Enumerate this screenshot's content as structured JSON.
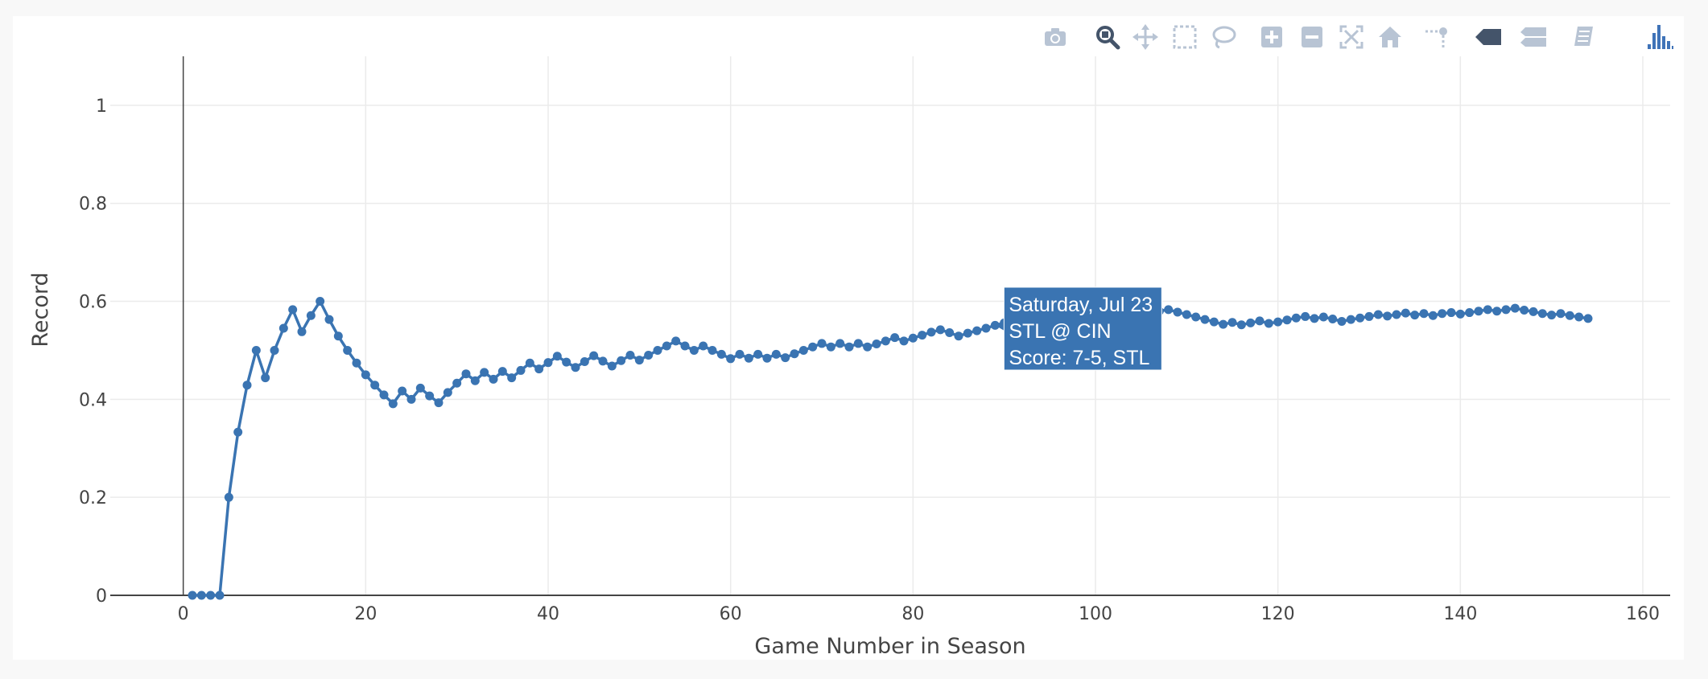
{
  "modebar": {
    "buttons": [
      {
        "name": "camera-icon",
        "x": 1311
      },
      {
        "name": "zoom-icon",
        "x": 1376
      },
      {
        "name": "pan-icon",
        "x": 1423
      },
      {
        "name": "box-select-icon",
        "x": 1472
      },
      {
        "name": "lasso-select-icon",
        "x": 1520
      },
      {
        "name": "zoom-in-icon",
        "x": 1580
      },
      {
        "name": "zoom-out-icon",
        "x": 1630
      },
      {
        "name": "autoscale-icon",
        "x": 1679
      },
      {
        "name": "reset-axes-icon",
        "x": 1727
      },
      {
        "name": "toggle-spike-lines-icon",
        "x": 1786
      },
      {
        "name": "show-closest-data-icon",
        "x": 1848
      },
      {
        "name": "compare-data-icon",
        "x": 1904
      },
      {
        "name": "edit-chart-icon",
        "x": 1968
      },
      {
        "name": "plotly-logo-icon",
        "x": 2062
      }
    ],
    "colors": {
      "icon": "#b8c4d4",
      "active": "#44546a",
      "logo": "#3f73b8"
    }
  },
  "chart_data": {
    "type": "line",
    "xlabel": "Game Number in Season",
    "ylabel": "Record",
    "xlim": [
      -8,
      163
    ],
    "ylim": [
      0,
      1.1
    ],
    "xticks": [
      0,
      20,
      40,
      60,
      80,
      100,
      120,
      140,
      160
    ],
    "yticks": [
      0,
      0.2,
      0.4,
      0.6,
      0.8,
      1
    ],
    "ytick_labels": [
      "0",
      "0.2",
      "0.4",
      "0.6",
      "0.8",
      "1"
    ],
    "grid": true,
    "line_color": "#3a74b2",
    "series": [
      {
        "x": [
          1,
          2,
          3,
          4,
          5,
          6,
          7,
          8,
          9,
          10,
          11,
          12,
          13,
          14,
          15,
          16,
          17,
          18,
          19,
          20,
          21,
          22,
          23,
          24,
          25,
          26,
          27,
          28,
          29,
          30,
          31,
          32,
          33,
          34,
          35,
          36,
          37,
          38,
          39,
          40,
          41,
          42,
          43,
          44,
          45,
          46,
          47,
          48,
          49,
          50,
          51,
          52,
          53,
          54,
          55,
          56,
          57,
          58,
          59,
          60,
          61,
          62,
          63,
          64,
          65,
          66,
          67,
          68,
          69,
          70,
          71,
          72,
          73,
          74,
          75,
          76,
          77,
          78,
          79,
          80,
          81,
          82,
          83,
          84,
          85,
          86,
          87,
          88,
          89,
          90,
          91,
          92,
          93,
          94,
          95,
          96,
          97,
          98,
          99,
          100,
          101,
          102,
          103,
          104,
          105,
          106,
          107,
          108,
          109,
          110,
          111,
          112,
          113,
          114,
          115,
          116,
          117,
          118,
          119,
          120,
          121,
          122,
          123,
          124,
          125,
          126,
          127,
          128,
          129,
          130,
          131,
          132,
          133,
          134,
          135,
          136,
          137,
          138,
          139,
          140,
          141,
          142,
          143,
          144,
          145,
          146,
          147,
          148,
          149,
          150,
          151,
          152,
          153,
          154
        ],
        "y": [
          0,
          0,
          0,
          0,
          0.2,
          0.333,
          0.429,
          0.5,
          0.444,
          0.5,
          0.545,
          0.583,
          0.538,
          0.571,
          0.6,
          0.563,
          0.529,
          0.5,
          0.474,
          0.45,
          0.429,
          0.409,
          0.391,
          0.417,
          0.4,
          0.423,
          0.407,
          0.393,
          0.414,
          0.433,
          0.452,
          0.438,
          0.455,
          0.441,
          0.457,
          0.444,
          0.459,
          0.474,
          0.462,
          0.475,
          0.488,
          0.476,
          0.465,
          0.477,
          0.489,
          0.478,
          0.468,
          0.479,
          0.49,
          0.48,
          0.49,
          0.5,
          0.509,
          0.519,
          0.509,
          0.5,
          0.509,
          0.5,
          0.492,
          0.483,
          0.492,
          0.484,
          0.492,
          0.484,
          0.492,
          0.485,
          0.493,
          0.5,
          0.507,
          0.514,
          0.507,
          0.514,
          0.507,
          0.514,
          0.507,
          0.513,
          0.519,
          0.526,
          0.519,
          0.525,
          0.531,
          0.537,
          0.542,
          0.536,
          0.529,
          0.535,
          0.54,
          0.545,
          0.551,
          0.556,
          0.56,
          0.565,
          0.57,
          0.574,
          0.579,
          0.583,
          0.577,
          0.582,
          0.586,
          0.59,
          0.584,
          0.588,
          0.583,
          0.587,
          0.581,
          0.585,
          0.58,
          0.583,
          0.578,
          0.573,
          0.568,
          0.563,
          0.558,
          0.553,
          0.557,
          0.552,
          0.556,
          0.56,
          0.555,
          0.558,
          0.562,
          0.566,
          0.569,
          0.565,
          0.568,
          0.564,
          0.559,
          0.563,
          0.566,
          0.569,
          0.573,
          0.57,
          0.573,
          0.576,
          0.572,
          0.575,
          0.571,
          0.575,
          0.577,
          0.574,
          0.577,
          0.58,
          0.583,
          0.58,
          0.583,
          0.586,
          0.582,
          0.579,
          0.575,
          0.572,
          0.575,
          0.571,
          0.568,
          0.565
        ]
      }
    ],
    "tooltip": {
      "x": 89,
      "y": 0.551,
      "background": "#3a74b2",
      "lines": [
        "Saturday, Jul 23",
        "STL @ CIN",
        "Score: 7-5, STL"
      ]
    }
  }
}
